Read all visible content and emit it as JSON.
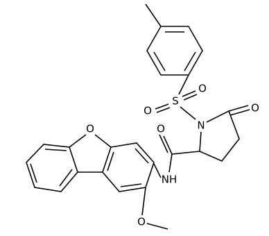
{
  "atoms": [
    "O",
    "O",
    "S",
    "N",
    "O",
    "O",
    "NH",
    "O",
    "O"
  ]
}
